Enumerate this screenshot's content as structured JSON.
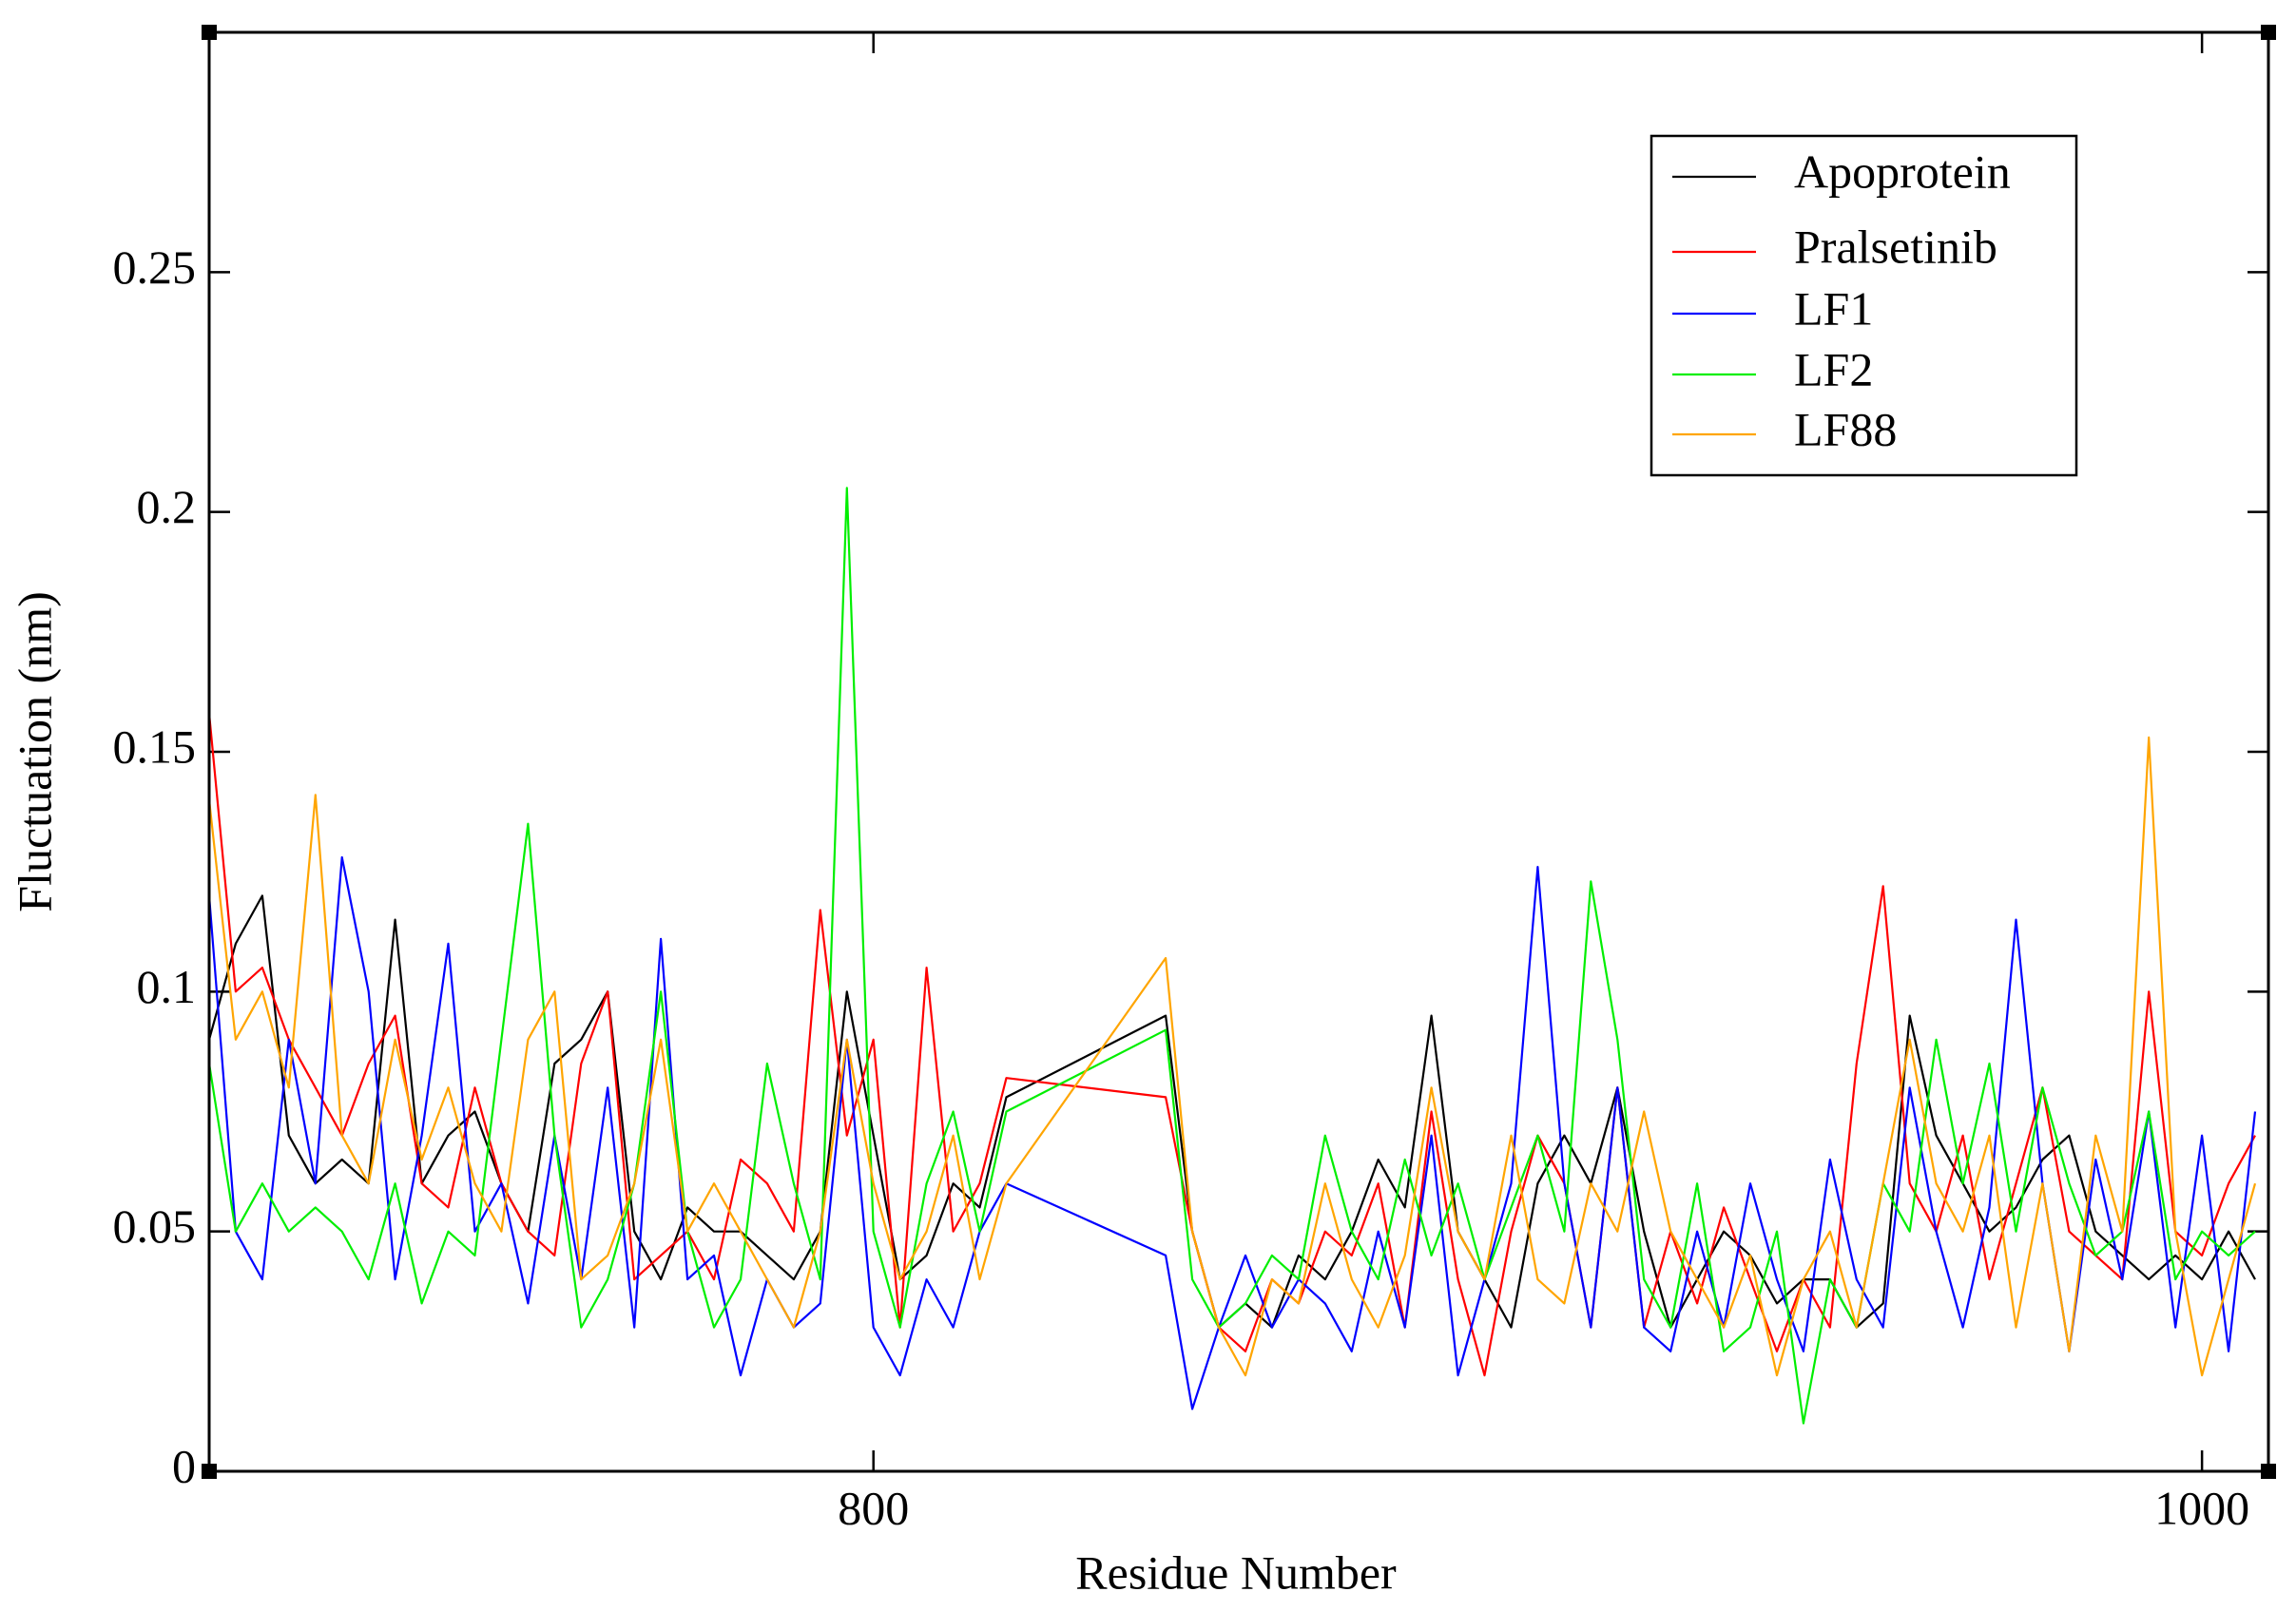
{
  "chart_data": {
    "type": "line",
    "xlabel": "Residue Number",
    "ylabel": "Fluctuation (nm)",
    "x": [
      700,
      704,
      708,
      712,
      716,
      720,
      724,
      728,
      732,
      736,
      740,
      744,
      748,
      752,
      756,
      760,
      764,
      768,
      772,
      776,
      780,
      784,
      788,
      792,
      796,
      800,
      804,
      808,
      812,
      816,
      820,
      844,
      848,
      852,
      856,
      860,
      864,
      868,
      872,
      876,
      880,
      884,
      888,
      892,
      896,
      900,
      904,
      908,
      912,
      916,
      920,
      924,
      928,
      932,
      936,
      940,
      944,
      948,
      952,
      956,
      960,
      964,
      968,
      972,
      976,
      980,
      984,
      988,
      992,
      996,
      1000,
      1004,
      1008
    ],
    "series": [
      {
        "name": "Apoprotein",
        "color": "#000000",
        "values": [
          0.09,
          0.11,
          0.12,
          0.07,
          0.06,
          0.065,
          0.06,
          0.115,
          0.06,
          0.07,
          0.075,
          0.06,
          0.05,
          0.085,
          0.09,
          0.1,
          0.05,
          0.04,
          0.055,
          0.05,
          0.05,
          0.045,
          0.04,
          0.05,
          0.1,
          0.07,
          0.04,
          0.045,
          0.06,
          0.055,
          0.078,
          0.095,
          0.05,
          0.03,
          0.035,
          0.03,
          0.045,
          0.04,
          0.05,
          0.065,
          0.055,
          0.095,
          0.05,
          0.04,
          0.03,
          0.06,
          0.07,
          0.06,
          0.08,
          0.05,
          0.03,
          0.04,
          0.05,
          0.045,
          0.035,
          0.04,
          0.04,
          0.03,
          0.035,
          0.095,
          0.07,
          0.06,
          0.05,
          0.055,
          0.065,
          0.07,
          0.05,
          0.045,
          0.04,
          0.045,
          0.04,
          0.05,
          0.04
        ]
      },
      {
        "name": "Pralsetinib",
        "color": "#ff0000",
        "values": [
          0.158,
          0.1,
          0.105,
          0.09,
          0.08,
          0.07,
          0.085,
          0.095,
          0.06,
          0.055,
          0.08,
          0.06,
          0.05,
          0.045,
          0.085,
          0.1,
          0.04,
          0.045,
          0.05,
          0.04,
          0.065,
          0.06,
          0.05,
          0.117,
          0.07,
          0.09,
          0.03,
          0.105,
          0.05,
          0.06,
          0.082,
          0.078,
          0.05,
          0.03,
          0.025,
          0.04,
          0.035,
          0.05,
          0.045,
          0.06,
          0.03,
          0.075,
          0.04,
          0.02,
          0.05,
          0.07,
          0.06,
          0.03,
          0.08,
          0.03,
          0.05,
          0.035,
          0.055,
          0.04,
          0.025,
          0.04,
          0.03,
          0.085,
          0.122,
          0.06,
          0.05,
          0.07,
          0.04,
          0.06,
          0.08,
          0.05,
          0.045,
          0.04,
          0.1,
          0.05,
          0.045,
          0.06,
          0.07
        ]
      },
      {
        "name": "LF1",
        "color": "#0000ff",
        "values": [
          0.12,
          0.05,
          0.04,
          0.09,
          0.06,
          0.128,
          0.1,
          0.04,
          0.07,
          0.11,
          0.05,
          0.06,
          0.035,
          0.07,
          0.04,
          0.08,
          0.03,
          0.111,
          0.04,
          0.045,
          0.02,
          0.04,
          0.03,
          0.035,
          0.09,
          0.03,
          0.02,
          0.04,
          0.03,
          0.05,
          0.06,
          0.045,
          0.013,
          0.03,
          0.045,
          0.03,
          0.04,
          0.035,
          0.025,
          0.05,
          0.03,
          0.07,
          0.02,
          0.04,
          0.06,
          0.126,
          0.06,
          0.03,
          0.08,
          0.03,
          0.025,
          0.05,
          0.03,
          0.06,
          0.04,
          0.025,
          0.065,
          0.04,
          0.03,
          0.08,
          0.05,
          0.03,
          0.055,
          0.115,
          0.06,
          0.025,
          0.065,
          0.04,
          0.075,
          0.03,
          0.07,
          0.025,
          0.075
        ]
      },
      {
        "name": "LF2",
        "color": "#00ee00",
        "values": [
          0.085,
          0.05,
          0.06,
          0.05,
          0.055,
          0.05,
          0.04,
          0.06,
          0.035,
          0.05,
          0.045,
          0.09,
          0.135,
          0.07,
          0.03,
          0.04,
          0.06,
          0.1,
          0.05,
          0.03,
          0.04,
          0.085,
          0.06,
          0.04,
          0.205,
          0.05,
          0.03,
          0.06,
          0.075,
          0.05,
          0.075,
          0.092,
          0.04,
          0.03,
          0.035,
          0.045,
          0.04,
          0.07,
          0.05,
          0.04,
          0.065,
          0.045,
          0.06,
          0.04,
          0.055,
          0.07,
          0.05,
          0.123,
          0.09,
          0.04,
          0.03,
          0.06,
          0.025,
          0.03,
          0.05,
          0.01,
          0.04,
          0.03,
          0.06,
          0.05,
          0.09,
          0.06,
          0.085,
          0.05,
          0.08,
          0.06,
          0.045,
          0.05,
          0.075,
          0.04,
          0.05,
          0.045,
          0.05
        ]
      },
      {
        "name": "LF88",
        "color": "#ffa500",
        "values": [
          0.14,
          0.09,
          0.1,
          0.08,
          0.141,
          0.07,
          0.06,
          0.09,
          0.065,
          0.08,
          0.06,
          0.05,
          0.09,
          0.1,
          0.04,
          0.045,
          0.06,
          0.09,
          0.05,
          0.06,
          0.05,
          0.04,
          0.03,
          0.05,
          0.09,
          0.06,
          0.04,
          0.05,
          0.07,
          0.04,
          0.06,
          0.107,
          0.05,
          0.03,
          0.02,
          0.04,
          0.035,
          0.06,
          0.04,
          0.03,
          0.045,
          0.08,
          0.05,
          0.04,
          0.07,
          0.04,
          0.035,
          0.06,
          0.05,
          0.075,
          0.05,
          0.04,
          0.03,
          0.045,
          0.02,
          0.04,
          0.05,
          0.03,
          0.06,
          0.09,
          0.06,
          0.05,
          0.07,
          0.03,
          0.06,
          0.025,
          0.07,
          0.05,
          0.153,
          0.05,
          0.02,
          0.04,
          0.06
        ]
      }
    ],
    "xlim": [
      700,
      1010
    ],
    "xticks": [
      800,
      1000
    ],
    "ylim": [
      0,
      0.3
    ],
    "yticks": [
      0,
      0.05,
      0.1,
      0.15,
      0.2,
      0.25
    ],
    "grid": false,
    "legend": "upper right"
  }
}
